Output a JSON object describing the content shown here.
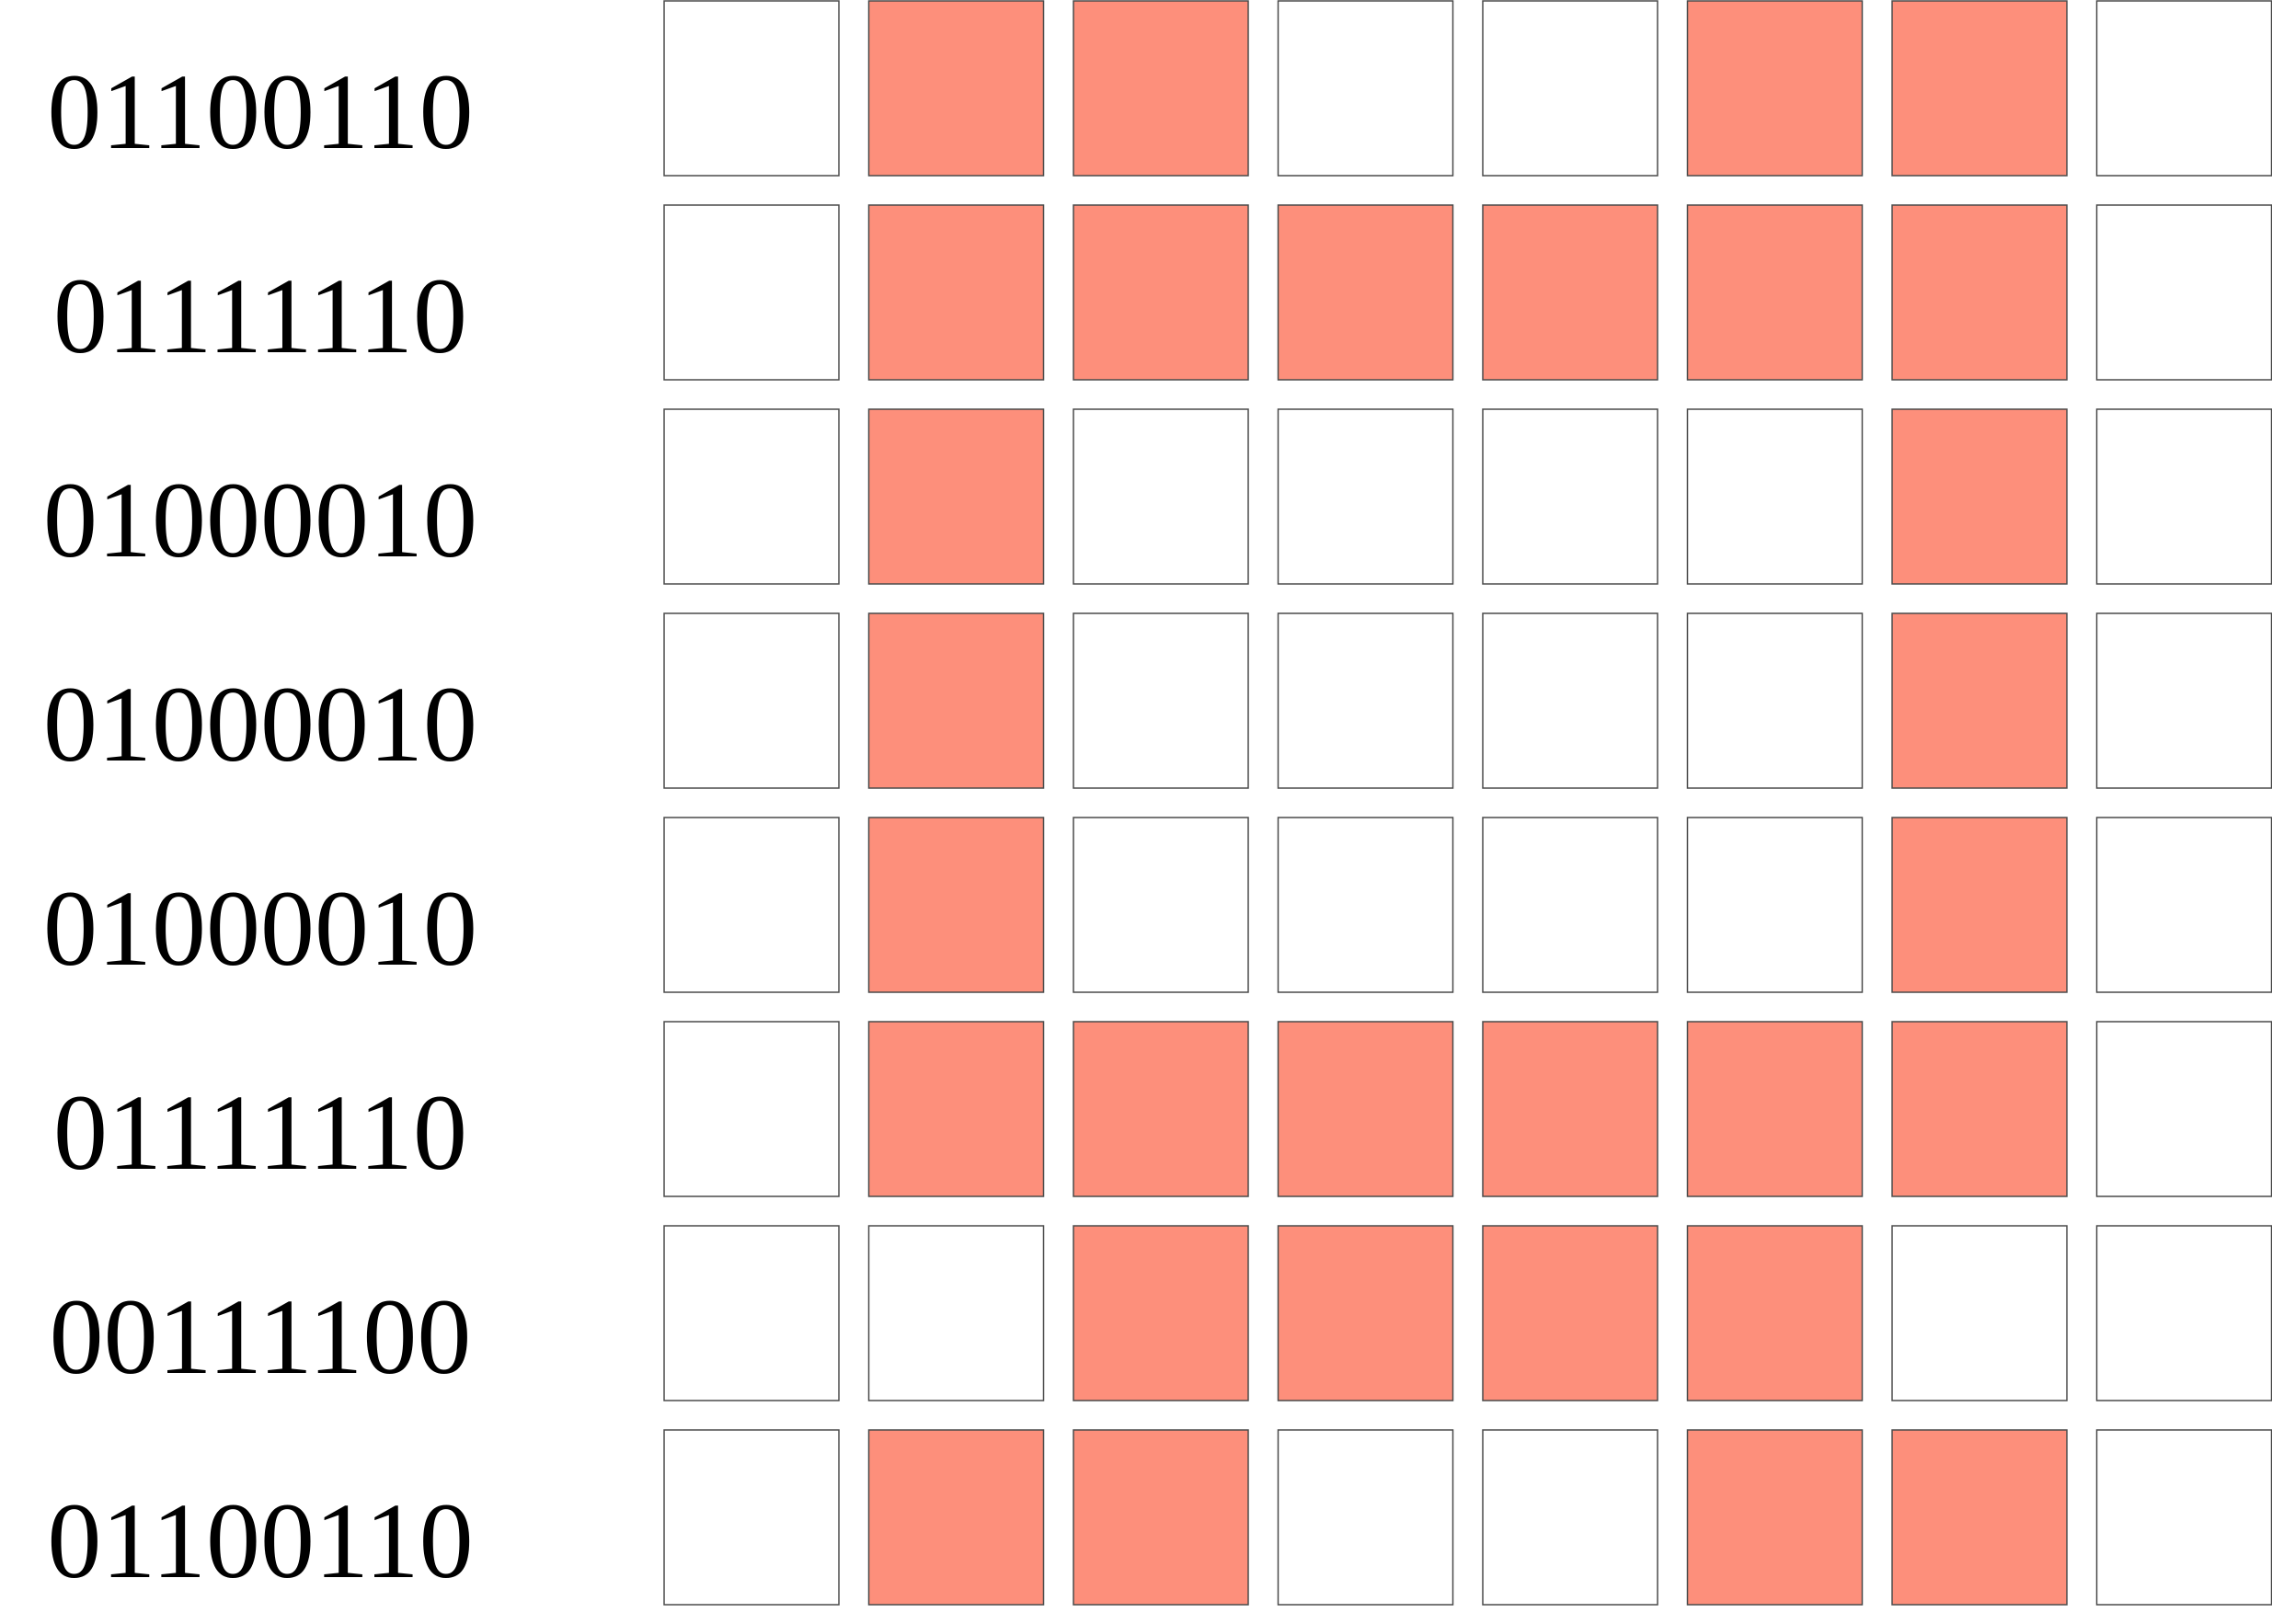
{
  "colors": {
    "on": "#FD8F7B",
    "off": "#FFFFFF",
    "border": "#4A4A4A",
    "text": "#000000"
  },
  "rows": [
    {
      "label": "01100110",
      "bits": [
        0,
        1,
        1,
        0,
        0,
        1,
        1,
        0
      ]
    },
    {
      "label": "01111110",
      "bits": [
        0,
        1,
        1,
        1,
        1,
        1,
        1,
        0
      ]
    },
    {
      "label": "01000010",
      "bits": [
        0,
        1,
        0,
        0,
        0,
        0,
        1,
        0
      ]
    },
    {
      "label": "01000010",
      "bits": [
        0,
        1,
        0,
        0,
        0,
        0,
        1,
        0
      ]
    },
    {
      "label": "01000010",
      "bits": [
        0,
        1,
        0,
        0,
        0,
        0,
        1,
        0
      ]
    },
    {
      "label": "01111110",
      "bits": [
        0,
        1,
        1,
        1,
        1,
        1,
        1,
        0
      ]
    },
    {
      "label": "00111100",
      "bits": [
        0,
        0,
        1,
        1,
        1,
        1,
        0,
        0
      ]
    },
    {
      "label": "01100110",
      "bits": [
        0,
        1,
        1,
        0,
        0,
        1,
        1,
        0
      ]
    }
  ]
}
